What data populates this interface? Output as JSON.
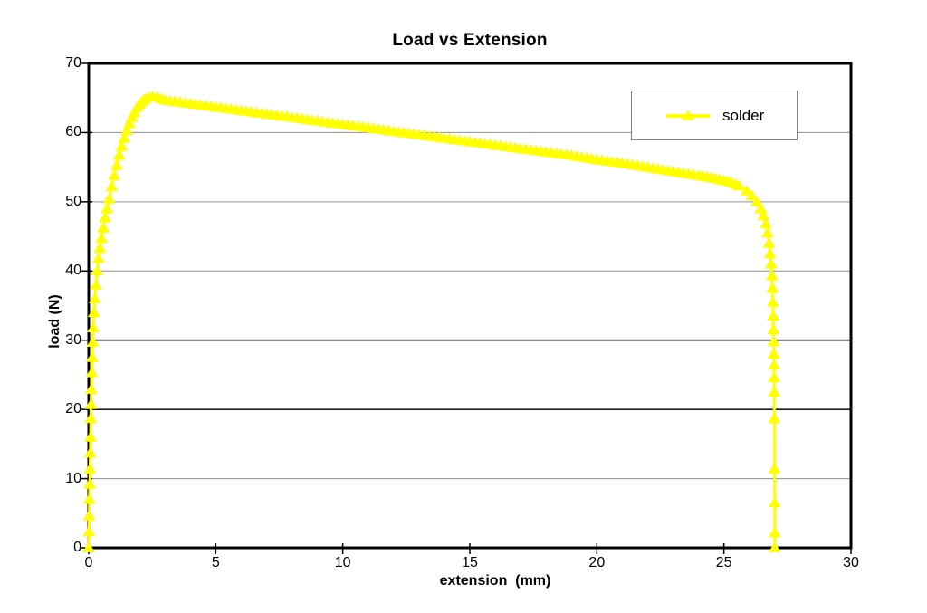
{
  "chart_data": {
    "type": "line",
    "title": "Load vs Extension",
    "xlabel": "extension  (mm)",
    "ylabel": "load (N)",
    "xlim": [
      0,
      30
    ],
    "ylim": [
      0,
      70
    ],
    "x_ticks": [
      "0",
      "5",
      "10",
      "15",
      "20",
      "25",
      "30"
    ],
    "x_tick_values": [
      0,
      5,
      10,
      15,
      20,
      25,
      30
    ],
    "y_ticks": [
      "0",
      "10",
      "20",
      "30",
      "40",
      "50",
      "60",
      "70"
    ],
    "y_tick_values": [
      0,
      10,
      20,
      30,
      40,
      50,
      60,
      70
    ],
    "grid": "horizontal",
    "y_gridlines": [
      {
        "value": 10,
        "color": "#909090",
        "width": 1
      },
      {
        "value": 20,
        "color": "#1a1a1a",
        "width": 1.6
      },
      {
        "value": 30,
        "color": "#1a1a1a",
        "width": 1.6
      },
      {
        "value": 40,
        "color": "#909090",
        "width": 1
      },
      {
        "value": 50,
        "color": "#909090",
        "width": 1
      },
      {
        "value": 60,
        "color": "#909090",
        "width": 1
      }
    ],
    "legend": {
      "position": "upper-right-inside",
      "entries": [
        {
          "name": "solder",
          "color": "#FFFF00",
          "marker": "triangle-up"
        }
      ]
    },
    "colors": {
      "series": "#FFFF00",
      "axis": "#000000",
      "gridline": "#909090",
      "legend_border": "#808080",
      "background": "#ffffff"
    },
    "series": [
      {
        "name": "solder",
        "marker": "triangle-up",
        "points": [
          [
            0,
            0
          ],
          [
            0.01,
            2.3
          ],
          [
            0.02,
            4.6
          ],
          [
            0.03,
            7
          ],
          [
            0.04,
            9.2
          ],
          [
            0.05,
            11.4
          ],
          [
            0.06,
            13.7
          ],
          [
            0.07,
            16
          ],
          [
            0.08,
            18.7
          ],
          [
            0.09,
            20.7
          ],
          [
            0.1,
            22.9
          ],
          [
            0.12,
            25.3
          ],
          [
            0.14,
            27.5
          ],
          [
            0.16,
            29.7
          ],
          [
            0.18,
            31.8
          ],
          [
            0.21,
            34
          ],
          [
            0.24,
            36
          ],
          [
            0.28,
            38
          ],
          [
            0.33,
            40
          ],
          [
            0.38,
            41.8
          ],
          [
            0.44,
            43.3
          ],
          [
            0.5,
            44.7
          ],
          [
            0.57,
            46.2
          ],
          [
            0.65,
            47.7
          ],
          [
            0.72,
            49
          ],
          [
            0.8,
            50.4
          ],
          [
            0.9,
            52.2
          ],
          [
            1,
            53.8
          ],
          [
            1.1,
            55.3
          ],
          [
            1.2,
            56.7
          ],
          [
            1.3,
            58
          ],
          [
            1.4,
            59.2
          ],
          [
            1.5,
            60.3
          ],
          [
            1.6,
            61.3
          ],
          [
            1.7,
            62.2
          ],
          [
            1.8,
            62.9
          ],
          [
            1.9,
            63.6
          ],
          [
            2,
            64.1
          ],
          [
            2.1,
            64.5
          ],
          [
            2.2,
            64.8
          ],
          [
            2.35,
            65.1
          ],
          [
            2.5,
            65.2
          ],
          [
            2.7,
            65.1
          ],
          [
            2.85,
            64.9
          ],
          [
            3,
            64.7
          ],
          [
            4,
            64.2
          ],
          [
            5,
            63.7
          ],
          [
            6,
            63.2
          ],
          [
            7,
            62.7
          ],
          [
            8,
            62.2
          ],
          [
            9,
            61.7
          ],
          [
            10,
            61.2
          ],
          [
            11,
            60.7
          ],
          [
            12,
            60.2
          ],
          [
            13,
            59.7
          ],
          [
            14,
            59.2
          ],
          [
            15,
            58.7
          ],
          [
            16,
            58.2
          ],
          [
            17,
            57.7
          ],
          [
            18,
            57.2
          ],
          [
            19,
            56.7
          ],
          [
            20,
            56.1
          ],
          [
            21,
            55.6
          ],
          [
            22,
            55
          ],
          [
            23,
            54.4
          ],
          [
            24,
            53.8
          ],
          [
            24.5,
            53.5
          ],
          [
            25,
            53.1
          ],
          [
            25.3,
            52.8
          ],
          [
            25.6,
            52.3
          ],
          [
            25.9,
            51.6
          ],
          [
            26.1,
            50.9
          ],
          [
            26.3,
            50
          ],
          [
            26.45,
            49
          ],
          [
            26.55,
            48
          ],
          [
            26.65,
            46.8
          ],
          [
            26.72,
            45.5
          ],
          [
            26.78,
            44
          ],
          [
            26.82,
            42.5
          ],
          [
            26.86,
            41
          ],
          [
            26.89,
            39.3
          ],
          [
            26.91,
            37.5
          ],
          [
            26.93,
            35.5
          ],
          [
            26.94,
            33.5
          ],
          [
            26.95,
            31.5
          ],
          [
            26.96,
            29.8
          ],
          [
            26.965,
            28
          ],
          [
            26.97,
            26.4
          ],
          [
            26.975,
            24.6
          ],
          [
            26.98,
            22.5
          ],
          [
            26.985,
            18.7
          ],
          [
            26.99,
            11.4
          ],
          [
            26.995,
            6.5
          ],
          [
            27,
            2.2
          ],
          [
            27,
            0
          ]
        ]
      }
    ]
  }
}
